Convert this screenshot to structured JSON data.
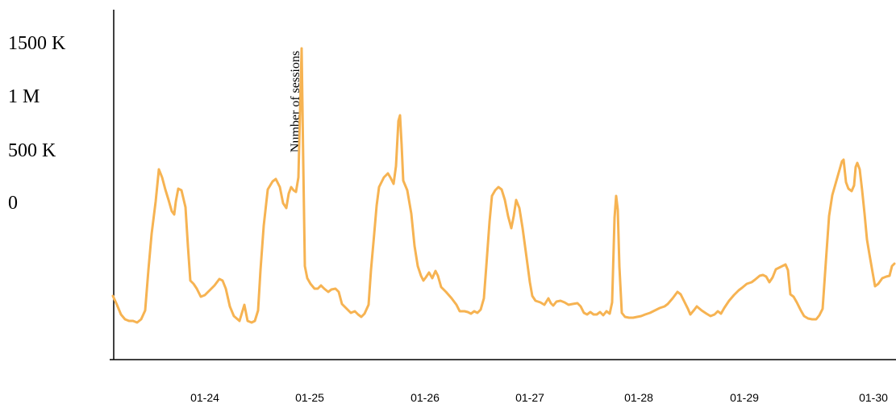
{
  "chart_data": {
    "type": "line",
    "title": "",
    "xlabel": "",
    "ylabel": "Number of sessions",
    "y_ticks": [
      "1500 K",
      "1 M",
      "500 K",
      "0"
    ],
    "x_ticks": [
      "01-24",
      "01-25",
      "01-26",
      "01-27",
      "01-28",
      "01-29",
      "01-30"
    ],
    "x_range": [
      "01-23 08:00",
      "01-30 12:00"
    ],
    "line_color": "#f6b352",
    "series": [
      {
        "values": [
          [
            140,
            367
          ],
          [
            145,
            378
          ],
          [
            150,
            390
          ],
          [
            155,
            396
          ],
          [
            160,
            398
          ],
          [
            165,
            398
          ],
          [
            170,
            400
          ],
          [
            175,
            396
          ],
          [
            180,
            385
          ],
          [
            184,
            335
          ],
          [
            188,
            290
          ],
          [
            193,
            250
          ],
          [
            197,
            210
          ],
          [
            201,
            220
          ],
          [
            205,
            235
          ],
          [
            209,
            248
          ],
          [
            213,
            262
          ],
          [
            216,
            266
          ],
          [
            218,
            250
          ],
          [
            221,
            234
          ],
          [
            225,
            236
          ],
          [
            230,
            257
          ],
          [
            233,
            305
          ],
          [
            236,
            348
          ],
          [
            240,
            352
          ],
          [
            244,
            358
          ],
          [
            249,
            368
          ],
          [
            254,
            366
          ],
          [
            260,
            360
          ],
          [
            266,
            354
          ],
          [
            272,
            346
          ],
          [
            276,
            348
          ],
          [
            280,
            358
          ],
          [
            285,
            380
          ],
          [
            290,
            392
          ],
          [
            297,
            398
          ],
          [
            303,
            378
          ],
          [
            307,
            398
          ],
          [
            312,
            400
          ],
          [
            316,
            398
          ],
          [
            320,
            385
          ],
          [
            323,
            335
          ],
          [
            327,
            280
          ],
          [
            332,
            235
          ],
          [
            338,
            225
          ],
          [
            342,
            222
          ],
          [
            347,
            232
          ],
          [
            351,
            252
          ],
          [
            355,
            258
          ],
          [
            358,
            240
          ],
          [
            361,
            232
          ],
          [
            364,
            236
          ],
          [
            367,
            238
          ],
          [
            370,
            220
          ],
          [
            372,
            140
          ],
          [
            374,
            60
          ],
          [
            376,
            200
          ],
          [
            378,
            330
          ],
          [
            381,
            345
          ],
          [
            385,
            352
          ],
          [
            390,
            358
          ],
          [
            394,
            358
          ],
          [
            398,
            354
          ],
          [
            402,
            358
          ],
          [
            407,
            362
          ],
          [
            411,
            359
          ],
          [
            416,
            358
          ],
          [
            420,
            362
          ],
          [
            424,
            377
          ],
          [
            430,
            383
          ],
          [
            435,
            388
          ],
          [
            440,
            386
          ],
          [
            444,
            390
          ],
          [
            448,
            393
          ],
          [
            452,
            389
          ],
          [
            457,
            378
          ],
          [
            460,
            335
          ],
          [
            464,
            290
          ],
          [
            467,
            255
          ],
          [
            470,
            232
          ],
          [
            476,
            220
          ],
          [
            481,
            215
          ],
          [
            484,
            220
          ],
          [
            488,
            228
          ],
          [
            491,
            206
          ],
          [
            494,
            150
          ],
          [
            496,
            143
          ],
          [
            498,
            180
          ],
          [
            500,
            224
          ],
          [
            505,
            236
          ],
          [
            510,
            265
          ],
          [
            514,
            305
          ],
          [
            518,
            330
          ],
          [
            522,
            342
          ],
          [
            525,
            348
          ],
          [
            528,
            344
          ],
          [
            532,
            338
          ],
          [
            536,
            345
          ],
          [
            540,
            336
          ],
          [
            543,
            342
          ],
          [
            547,
            356
          ],
          [
            553,
            362
          ],
          [
            560,
            370
          ],
          [
            566,
            378
          ],
          [
            570,
            386
          ],
          [
            576,
            386
          ],
          [
            580,
            387
          ],
          [
            584,
            389
          ],
          [
            588,
            386
          ],
          [
            592,
            388
          ],
          [
            596,
            384
          ],
          [
            600,
            370
          ],
          [
            603,
            330
          ],
          [
            607,
            275
          ],
          [
            610,
            243
          ],
          [
            614,
            236
          ],
          [
            618,
            232
          ],
          [
            622,
            235
          ],
          [
            626,
            248
          ],
          [
            630,
            268
          ],
          [
            634,
            283
          ],
          [
            637,
            268
          ],
          [
            640,
            248
          ],
          [
            644,
            258
          ],
          [
            648,
            283
          ],
          [
            653,
            320
          ],
          [
            657,
            350
          ],
          [
            660,
            367
          ],
          [
            664,
            373
          ],
          [
            670,
            375
          ],
          [
            675,
            378
          ],
          [
            680,
            370
          ],
          [
            683,
            376
          ],
          [
            686,
            379
          ],
          [
            690,
            374
          ],
          [
            695,
            373
          ],
          [
            700,
            375
          ],
          [
            705,
            378
          ],
          [
            710,
            377
          ],
          [
            716,
            376
          ],
          [
            720,
            380
          ],
          [
            724,
            388
          ],
          [
            728,
            390
          ],
          [
            732,
            387
          ],
          [
            736,
            390
          ],
          [
            740,
            390
          ],
          [
            744,
            387
          ],
          [
            748,
            391
          ],
          [
            752,
            386
          ],
          [
            756,
            389
          ],
          [
            759,
            375
          ],
          [
            762,
            270
          ],
          [
            764,
            243
          ],
          [
            766,
            260
          ],
          [
            768,
            330
          ],
          [
            771,
            388
          ],
          [
            775,
            393
          ],
          [
            780,
            394
          ],
          [
            785,
            394
          ],
          [
            790,
            393
          ],
          [
            795,
            392
          ],
          [
            800,
            390
          ],
          [
            806,
            388
          ],
          [
            812,
            385
          ],
          [
            818,
            382
          ],
          [
            824,
            380
          ],
          [
            828,
            377
          ],
          [
            834,
            370
          ],
          [
            840,
            362
          ],
          [
            844,
            365
          ],
          [
            848,
            373
          ],
          [
            853,
            383
          ],
          [
            856,
            390
          ],
          [
            861,
            384
          ],
          [
            864,
            380
          ],
          [
            870,
            385
          ],
          [
            876,
            389
          ],
          [
            881,
            392
          ],
          [
            886,
            390
          ],
          [
            890,
            386
          ],
          [
            894,
            389
          ],
          [
            898,
            382
          ],
          [
            904,
            373
          ],
          [
            910,
            366
          ],
          [
            916,
            360
          ],
          [
            920,
            357
          ],
          [
            926,
            352
          ],
          [
            932,
            350
          ],
          [
            936,
            347
          ],
          [
            942,
            342
          ],
          [
            946,
            341
          ],
          [
            950,
            343
          ],
          [
            954,
            350
          ],
          [
            958,
            344
          ],
          [
            962,
            334
          ],
          [
            966,
            332
          ],
          [
            970,
            330
          ],
          [
            974,
            328
          ],
          [
            977,
            335
          ],
          [
            980,
            365
          ],
          [
            984,
            368
          ],
          [
            988,
            375
          ],
          [
            993,
            385
          ],
          [
            997,
            392
          ],
          [
            1002,
            395
          ],
          [
            1007,
            396
          ],
          [
            1012,
            396
          ],
          [
            1016,
            391
          ],
          [
            1020,
            383
          ],
          [
            1024,
            325
          ],
          [
            1028,
            268
          ],
          [
            1032,
            242
          ],
          [
            1036,
            228
          ],
          [
            1040,
            214
          ],
          [
            1044,
            200
          ],
          [
            1046,
            198
          ],
          [
            1049,
            226
          ],
          [
            1052,
            234
          ],
          [
            1056,
            237
          ],
          [
            1059,
            230
          ],
          [
            1061,
            207
          ],
          [
            1063,
            202
          ],
          [
            1066,
            210
          ],
          [
            1069,
            236
          ],
          [
            1072,
            265
          ],
          [
            1075,
            297
          ],
          [
            1078,
            315
          ],
          [
            1082,
            338
          ],
          [
            1085,
            355
          ],
          [
            1089,
            352
          ],
          [
            1094,
            345
          ],
          [
            1099,
            343
          ],
          [
            1103,
            342
          ],
          [
            1106,
            330
          ],
          [
            1109,
            327
          ]
        ]
      }
    ]
  }
}
